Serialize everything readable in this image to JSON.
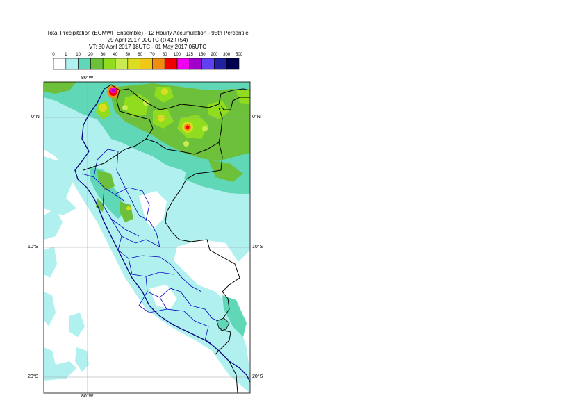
{
  "title": {
    "line1": "Total Precipitation (ECMWF Ensemble) - 12 Hourly Accumulation - 95th Percentile",
    "line2": "29 April 2017 00UTC (t+42,t+54)",
    "line3": "VT: 30 April 2017 18UTC - 01 May 2017 06UTC"
  },
  "legend": {
    "ticks": [
      "0",
      "1",
      "10",
      "20",
      "30",
      "40",
      "50",
      "60",
      "70",
      "80",
      "100",
      "125",
      "150",
      "200",
      "300",
      "500"
    ],
    "colors": [
      "#ffffff",
      "#b0f0ee",
      "#60d8b8",
      "#6cc03a",
      "#90dc1e",
      "#c8ec50",
      "#dcdc20",
      "#f0c818",
      "#f08c10",
      "#f00000",
      "#f000f0",
      "#a000c8",
      "#6040f0",
      "#2020a0",
      "#000050"
    ]
  },
  "map": {
    "lon_labels": [
      "80°W",
      "80°W"
    ],
    "lat_labels": {
      "left": [
        "0°N",
        "10°S",
        "20°S"
      ],
      "right": [
        "0°N",
        "10°S",
        "20°S"
      ]
    },
    "colors": {
      "light_precip": "#b0f0ee",
      "moderate_precip": "#60d8b8",
      "heavy_green": "#6cc03a",
      "country_border": "#000000",
      "region_border": "#0000c0",
      "coastline": "#000080",
      "graticule": "#a0a0a0"
    }
  }
}
